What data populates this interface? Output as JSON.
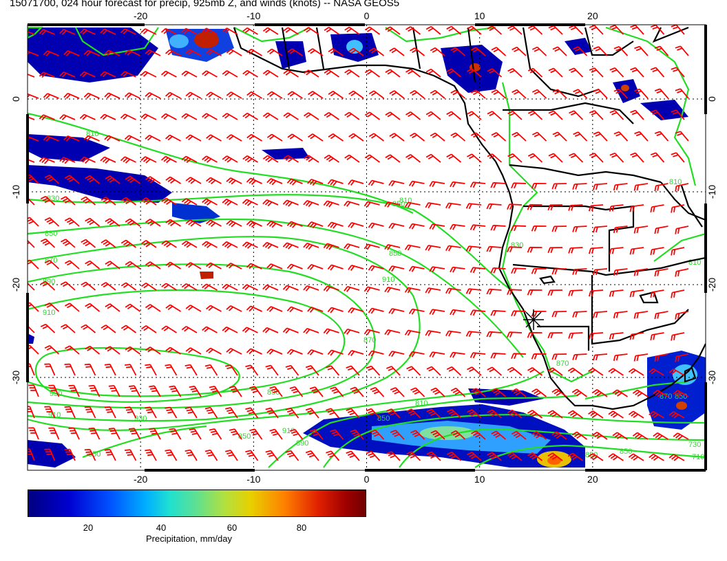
{
  "title": "15071700, 024 hour forecast for precip, 925mb Z, and winds (knots) -- NASA GEOS5",
  "map": {
    "lon_range": [
      -30,
      30
    ],
    "lat_range": [
      -40,
      8
    ],
    "lon_ticks": [
      "-20",
      "-10",
      "0",
      "10",
      "20"
    ],
    "lat_ticks": [
      "0",
      "-10",
      "-20",
      "-30"
    ],
    "gridlines": "dotted",
    "contour_color": "#22dd22",
    "barb_color": "#ff0000",
    "coastline_color": "#000000",
    "contour_labels": [
      "810",
      "830",
      "850",
      "870",
      "890",
      "910",
      "930",
      "850",
      "870",
      "890",
      "910",
      "930",
      "910",
      "850",
      "850",
      "890",
      "910",
      "850",
      "810",
      "870",
      "850",
      "830",
      "810",
      "810",
      "870",
      "850",
      "730",
      "710",
      "850",
      "850",
      "810"
    ],
    "marker": "cyclone-star-symbol"
  },
  "colorbar": {
    "ticks": [
      "20",
      "40",
      "60",
      "80"
    ],
    "label": "Precipitation, mm/day",
    "colors": [
      "#00007f",
      "#0000d0",
      "#0050ff",
      "#00b0ff",
      "#20e0d0",
      "#60e090",
      "#b0e040",
      "#e8d000",
      "#ff8000",
      "#e02000",
      "#a00000",
      "#700000"
    ]
  }
}
